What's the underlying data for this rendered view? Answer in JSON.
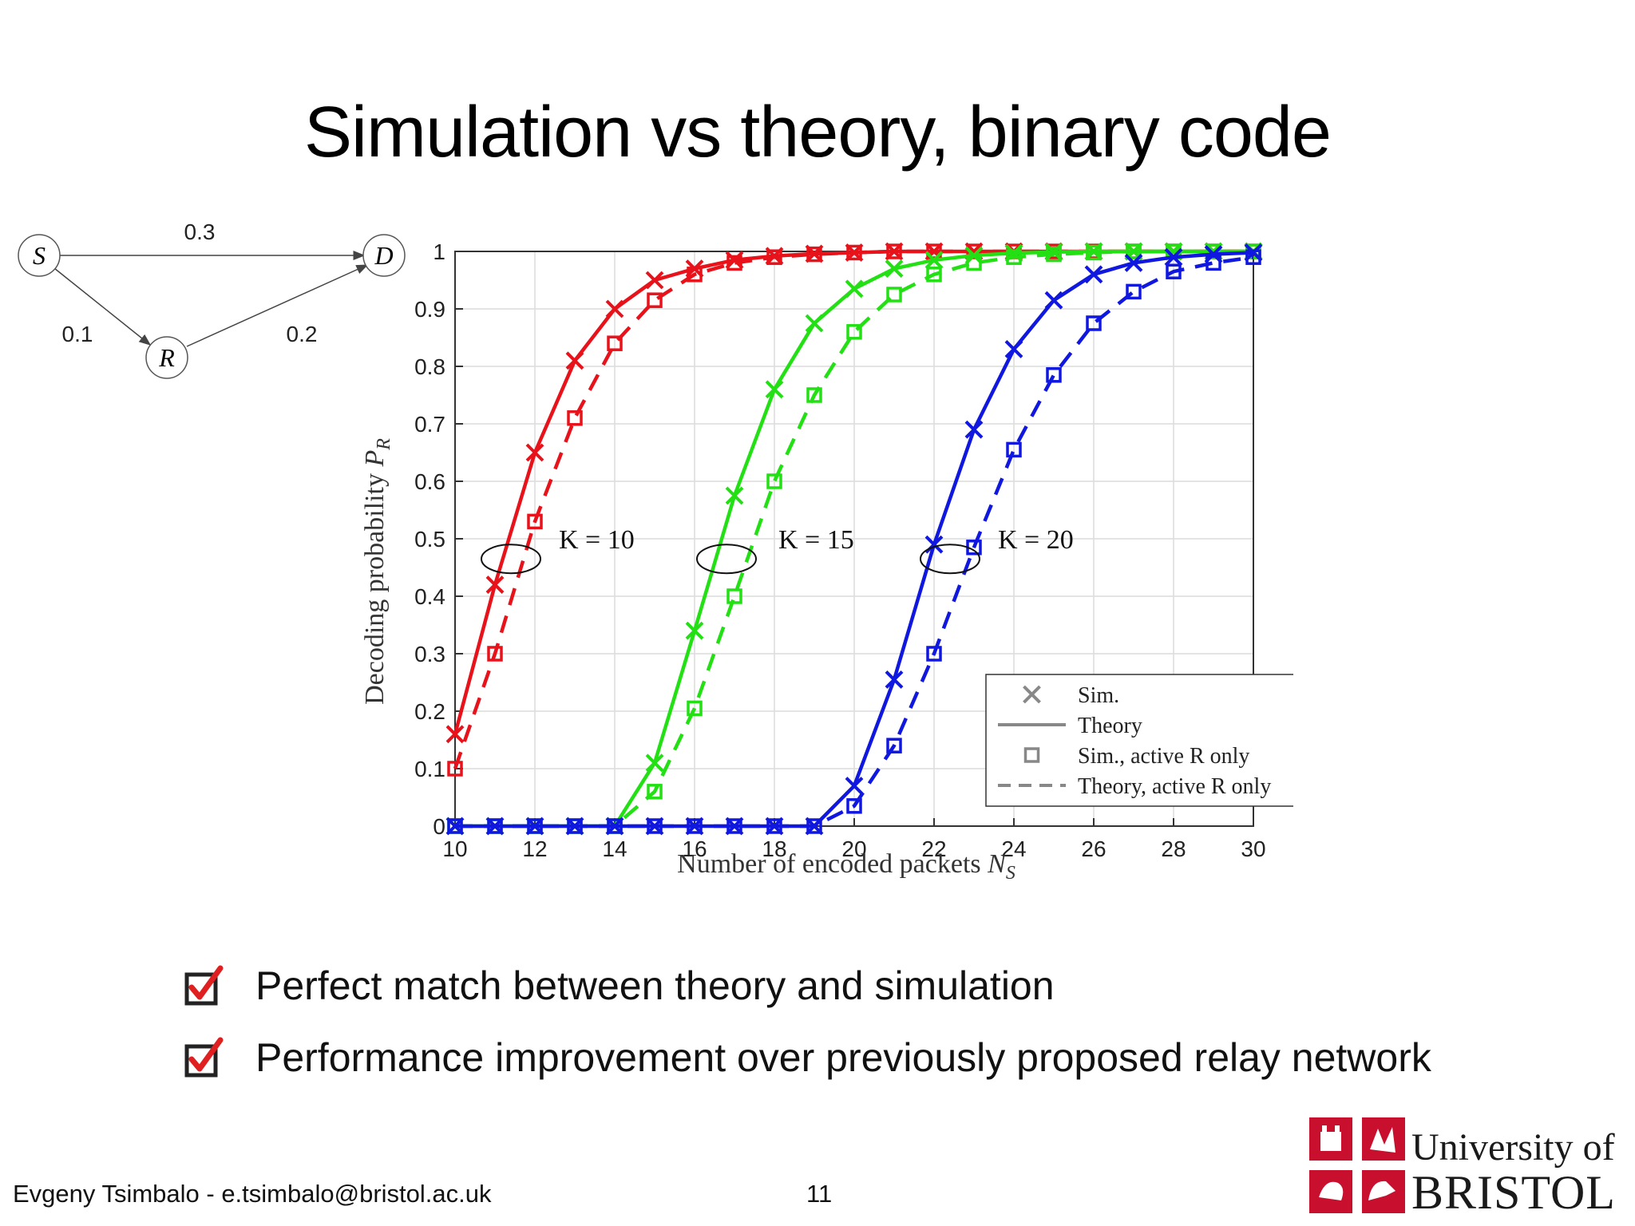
{
  "title": "Simulation vs theory, binary code",
  "diagram": {
    "nodes": [
      "S",
      "D",
      "R"
    ],
    "edges": [
      {
        "from": "S",
        "to": "D",
        "label": "0.3"
      },
      {
        "from": "S",
        "to": "R",
        "label": "0.1"
      },
      {
        "from": "R",
        "to": "D",
        "label": "0.2"
      }
    ]
  },
  "chart_data": {
    "type": "line",
    "xlabel": "Number of encoded packets N_S",
    "ylabel": "Decoding probability P_R",
    "xlim": [
      10,
      30
    ],
    "ylim": [
      0,
      1
    ],
    "xticks": [
      10,
      12,
      14,
      16,
      18,
      20,
      22,
      24,
      26,
      28,
      30
    ],
    "yticks": [
      0,
      0.1,
      0.2,
      0.3,
      0.4,
      0.5,
      0.6,
      0.7,
      0.8,
      0.9,
      1
    ],
    "grid": true,
    "legend_position": "bottom-right",
    "legend": [
      "Sim.",
      "Theory",
      "Sim., active R only",
      "Theory, active R only"
    ],
    "annotations": [
      "K = 10",
      "K = 15",
      "K = 20"
    ],
    "x": [
      10,
      11,
      12,
      13,
      14,
      15,
      16,
      17,
      18,
      19,
      20,
      21,
      22,
      23,
      24,
      25,
      26,
      27,
      28,
      29,
      30
    ],
    "series": [
      {
        "color": "#e8121b",
        "style": "solid",
        "marker": "x",
        "values": [
          0.16,
          0.42,
          0.65,
          0.81,
          0.9,
          0.95,
          0.97,
          0.985,
          0.992,
          0.996,
          0.998,
          1,
          1,
          1,
          1,
          1,
          1,
          1,
          1,
          1,
          1
        ]
      },
      {
        "color": "#e8121b",
        "style": "dashed",
        "marker": "square",
        "values": [
          0.1,
          0.3,
          0.53,
          0.71,
          0.84,
          0.915,
          0.96,
          0.98,
          0.99,
          0.995,
          0.998,
          1,
          1,
          1,
          1,
          1,
          1,
          1,
          1,
          1,
          1
        ]
      },
      {
        "color": "#22e014",
        "style": "solid",
        "marker": "x",
        "values": [
          0,
          0,
          0,
          0,
          0,
          0.11,
          0.34,
          0.575,
          0.76,
          0.875,
          0.935,
          0.97,
          0.985,
          0.993,
          0.997,
          0.999,
          1,
          1,
          1,
          1,
          1
        ]
      },
      {
        "color": "#22e014",
        "style": "dashed",
        "marker": "square",
        "values": [
          0,
          0,
          0,
          0,
          0,
          0.06,
          0.205,
          0.4,
          0.6,
          0.75,
          0.86,
          0.925,
          0.96,
          0.98,
          0.99,
          0.995,
          0.998,
          1,
          1,
          1,
          1
        ]
      },
      {
        "color": "#1018e0",
        "style": "solid",
        "marker": "x",
        "values": [
          0,
          0,
          0,
          0,
          0,
          0,
          0,
          0,
          0,
          0,
          0.07,
          0.255,
          0.49,
          0.69,
          0.83,
          0.915,
          0.96,
          0.98,
          0.99,
          0.995,
          0.998
        ]
      },
      {
        "color": "#1018e0",
        "style": "dashed",
        "marker": "square",
        "values": [
          0,
          0,
          0,
          0,
          0,
          0,
          0,
          0,
          0,
          0,
          0.035,
          0.14,
          0.3,
          0.485,
          0.655,
          0.785,
          0.875,
          0.93,
          0.965,
          0.98,
          0.99
        ]
      }
    ]
  },
  "bullets": [
    "Perfect match between theory and simulation",
    "Performance improvement over previously proposed relay network"
  ],
  "footer": {
    "author": "Evgeny Tsimbalo - e.tsimbalo@bristol.ac.uk",
    "page": "11"
  },
  "logo": {
    "line1": "University of",
    "line2": "BRISTOL"
  }
}
